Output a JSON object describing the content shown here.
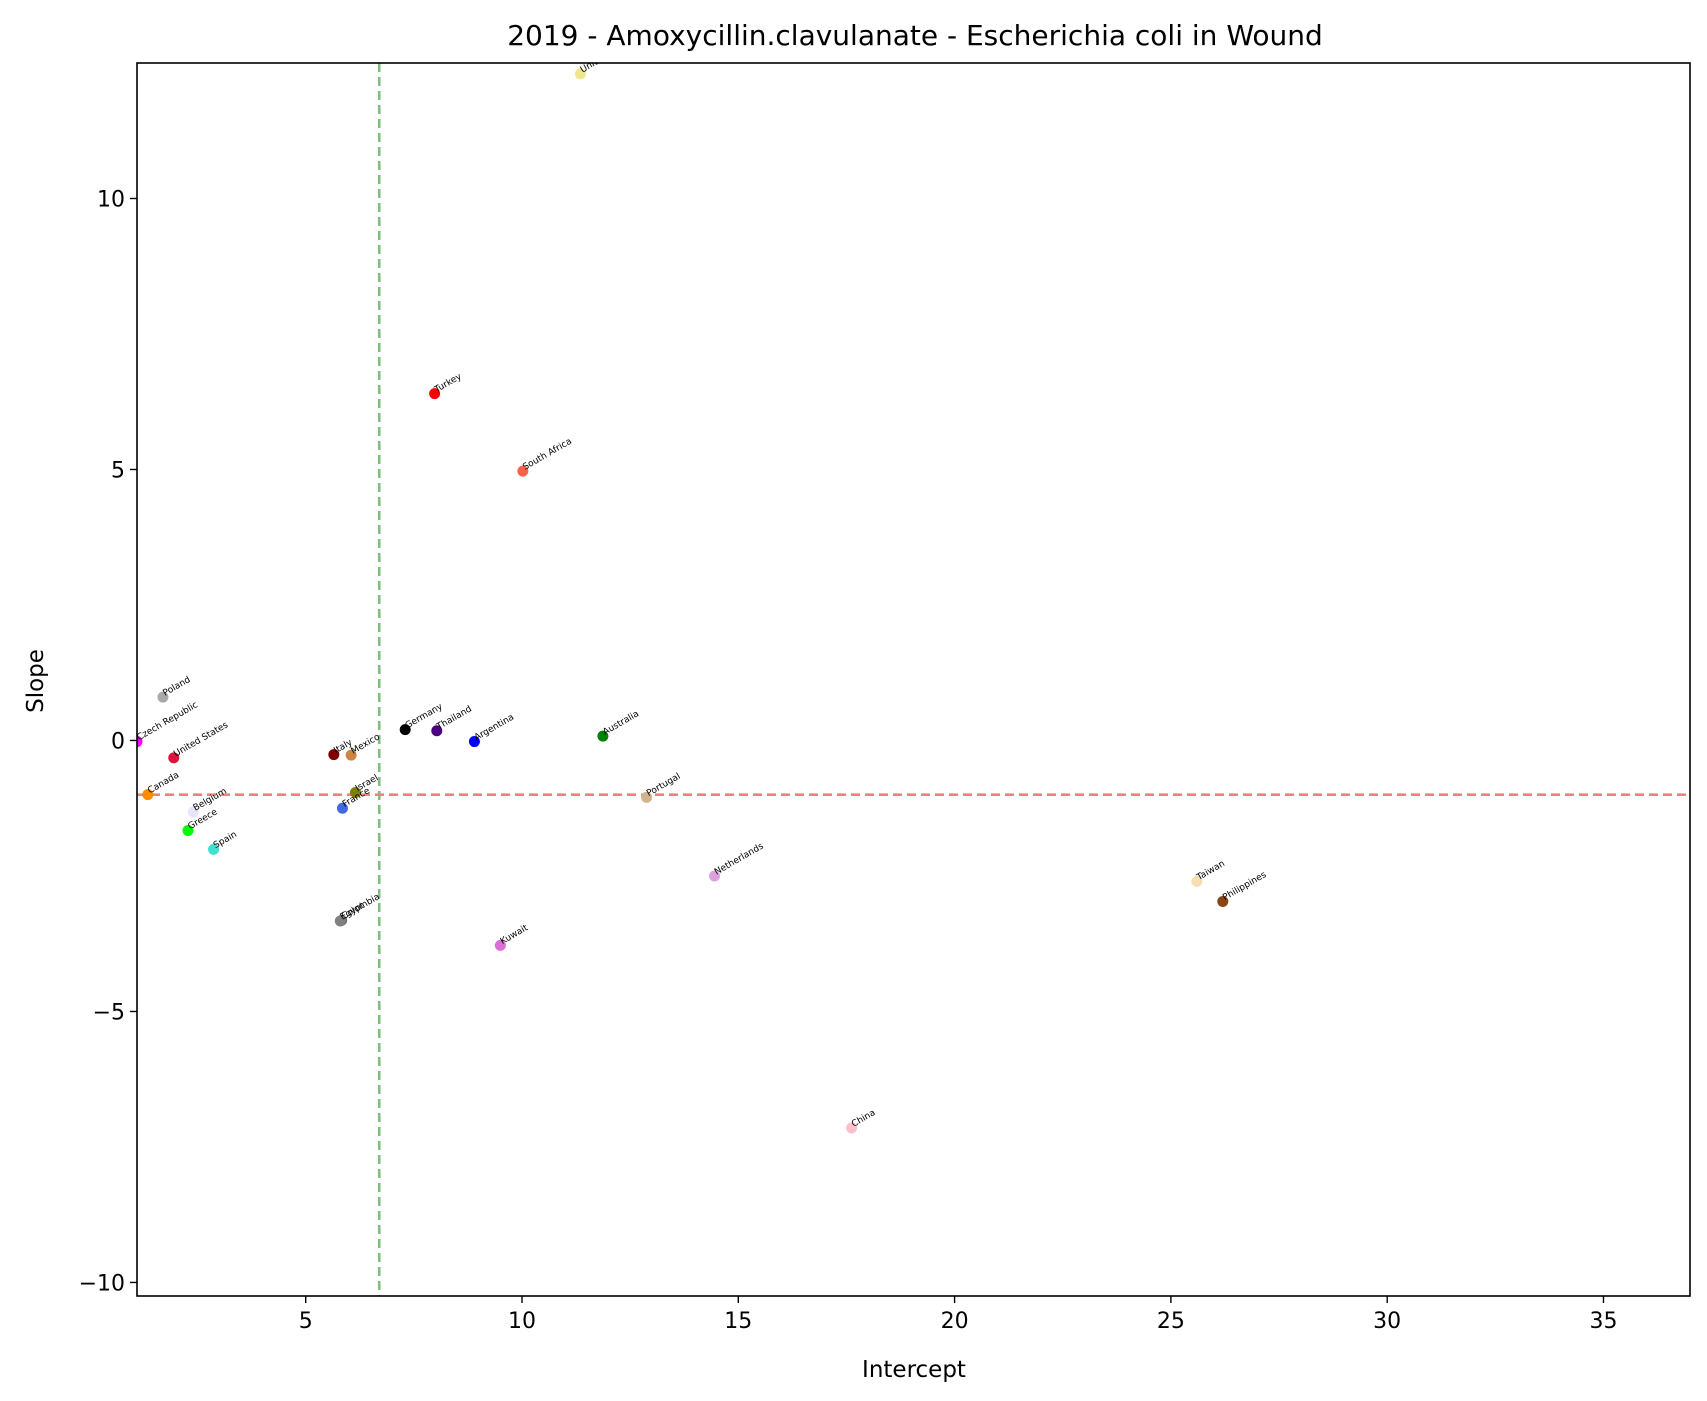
{
  "chart_data": {
    "type": "scatter",
    "title": "2019 - Amoxycillin.clavulanate - Escherichia coli in Wound",
    "xlabel": "Intercept",
    "ylabel": "Slope",
    "xlim": [
      1.1,
      37.0
    ],
    "ylim": [
      -10.25,
      12.5
    ],
    "xticks": [
      5,
      10,
      15,
      20,
      25,
      30,
      35
    ],
    "xtick_labels": [
      "5",
      "10",
      "15",
      "20",
      "25",
      "30",
      "35"
    ],
    "yticks": [
      10,
      5,
      0,
      -5,
      -10
    ],
    "ytick_labels": [
      "10",
      "5",
      "0",
      "−5",
      "−10"
    ],
    "grid": false,
    "reference_lines": [
      {
        "orientation": "vertical",
        "value": 6.7,
        "color": "#7fbf7f",
        "style": "dashed"
      },
      {
        "orientation": "horizontal",
        "value": -1.0,
        "color": "#f08080",
        "style": "dashed"
      }
    ],
    "points": [
      {
        "label": "United Kingdom",
        "x": 11.35,
        "y": 12.3,
        "color": "#f0e68c"
      },
      {
        "label": "Turkey",
        "x": 7.98,
        "y": 6.4,
        "color": "#ff0000"
      },
      {
        "label": "South Africa",
        "x": 10.02,
        "y": 4.97,
        "color": "#ff6347"
      },
      {
        "label": "Poland",
        "x": 1.7,
        "y": 0.8,
        "color": "#a9a9a9"
      },
      {
        "label": "Czech Republic",
        "x": 1.1,
        "y": -0.02,
        "color": "#ff00ff"
      },
      {
        "label": "United States",
        "x": 1.95,
        "y": -0.32,
        "color": "#dc143c"
      },
      {
        "label": "Germany",
        "x": 7.3,
        "y": 0.2,
        "color": "#000000"
      },
      {
        "label": "Thailand",
        "x": 8.03,
        "y": 0.18,
        "color": "#4b0082"
      },
      {
        "label": "Argentina",
        "x": 8.9,
        "y": -0.02,
        "color": "#0000ff"
      },
      {
        "label": "Australia",
        "x": 11.87,
        "y": 0.08,
        "color": "#008000"
      },
      {
        "label": "Italy",
        "x": 5.65,
        "y": -0.26,
        "color": "#800000"
      },
      {
        "label": "Mexico",
        "x": 6.05,
        "y": -0.27,
        "color": "#cd853f"
      },
      {
        "label": "Canada",
        "x": 1.35,
        "y": -1.0,
        "color": "#ff8c00"
      },
      {
        "label": "Israel",
        "x": 6.15,
        "y": -0.96,
        "color": "#808000"
      },
      {
        "label": "France",
        "x": 5.85,
        "y": -1.25,
        "color": "#4169e1"
      },
      {
        "label": "Belgium",
        "x": 2.4,
        "y": -1.32,
        "color": "#e6e6fa"
      },
      {
        "label": "Greece",
        "x": 2.28,
        "y": -1.66,
        "color": "#00ff00"
      },
      {
        "label": "Spain",
        "x": 2.87,
        "y": -2.01,
        "color": "#40e0d0"
      },
      {
        "label": "Portugal",
        "x": 12.88,
        "y": -1.05,
        "color": "#d2b48c"
      },
      {
        "label": "Netherlands",
        "x": 14.45,
        "y": -2.5,
        "color": "#dda0dd"
      },
      {
        "label": "Colombia",
        "x": 5.83,
        "y": -3.32,
        "color": "#696969"
      },
      {
        "label": "Egypt",
        "x": 5.8,
        "y": -3.33,
        "color": "#808080"
      },
      {
        "label": "Kuwait",
        "x": 9.5,
        "y": -3.78,
        "color": "#da70d6"
      },
      {
        "label": "Taiwan",
        "x": 25.6,
        "y": -2.6,
        "color": "#f5deb3"
      },
      {
        "label": "Philippines",
        "x": 26.2,
        "y": -2.97,
        "color": "#8b4513"
      },
      {
        "label": "China",
        "x": 17.62,
        "y": -7.15,
        "color": "#ffc0cb"
      }
    ]
  }
}
